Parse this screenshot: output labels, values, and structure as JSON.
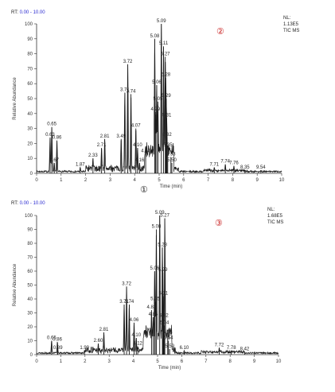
{
  "charts": [
    {
      "rt_label": "RT:",
      "rt_range": "0.00 - 10.00",
      "nl_label": "NL:",
      "nl_value": "1.13E5",
      "nl_mode": "TIC  MS",
      "marker_top": "②",
      "marker_bottom": "①",
      "marker_color": "#c81e1e",
      "marker_bottom_color": "#222222"
    },
    {
      "rt_label": "RT:",
      "rt_range": "0.00 - 10.00",
      "nl_label": "NL:",
      "nl_value": "1.68E5",
      "nl_mode": "TIC  MS",
      "marker_top": "③",
      "marker_color": "#c81e1e"
    }
  ],
  "chart_data": [
    {
      "type": "line",
      "xlabel": "Time (min)",
      "ylabel": "Relative Abundance",
      "xlim": [
        0,
        10
      ],
      "ylim": [
        0,
        100
      ],
      "xticks": [
        0,
        1,
        2,
        3,
        4,
        5,
        6,
        7,
        8,
        9,
        10
      ],
      "yticks": [
        0,
        10,
        20,
        30,
        40,
        50,
        60,
        70,
        80,
        90,
        100
      ],
      "line_color": "#1a1a1a",
      "peaks": [
        {
          "label": "0.63",
          "x": 0.55,
          "y": 24
        },
        {
          "label": "0.65",
          "x": 0.62,
          "y": 31
        },
        {
          "label": "0.86",
          "x": 0.83,
          "y": 22
        },
        {
          "label": "0.67",
          "x": 0.72,
          "y": 7
        },
        {
          "label": "1.87",
          "x": 1.78,
          "y": 4
        },
        {
          "label": "2.33",
          "x": 2.3,
          "y": 10
        },
        {
          "label": "2.71",
          "x": 2.65,
          "y": 17
        },
        {
          "label": "2.81",
          "x": 2.78,
          "y": 23
        },
        {
          "label": "3.49",
          "x": 3.45,
          "y": 23
        },
        {
          "label": "3.72",
          "x": 3.72,
          "y": 73
        },
        {
          "label": "3.71",
          "x": 3.6,
          "y": 54
        },
        {
          "label": "3.74",
          "x": 3.85,
          "y": 53
        },
        {
          "label": "4.07",
          "x": 4.05,
          "y": 30
        },
        {
          "label": "4.10",
          "x": 4.12,
          "y": 17
        },
        {
          "label": "4.87",
          "x": 4.45,
          "y": 13
        },
        {
          "label": "4.16",
          "x": 4.2,
          "y": 7
        },
        {
          "label": "5.08",
          "x": 4.82,
          "y": 90
        },
        {
          "label": "5.09",
          "x": 5.09,
          "y": 100
        },
        {
          "label": "5.06",
          "x": 4.9,
          "y": 59
        },
        {
          "label": "5.05",
          "x": 4.95,
          "y": 48
        },
        {
          "label": "4.99",
          "x": 4.85,
          "y": 41
        },
        {
          "label": "5.11",
          "x": 5.18,
          "y": 85
        },
        {
          "label": "5.27",
          "x": 5.25,
          "y": 78
        },
        {
          "label": "5.28",
          "x": 5.27,
          "y": 64
        },
        {
          "label": "5.29",
          "x": 5.29,
          "y": 50
        },
        {
          "label": "5.31",
          "x": 5.31,
          "y": 37
        },
        {
          "label": "5.32",
          "x": 5.32,
          "y": 24
        },
        {
          "label": "5.35",
          "x": 5.35,
          "y": 17
        },
        {
          "label": "5.53",
          "x": 5.48,
          "y": 11
        },
        {
          "label": "5.50",
          "x": 5.52,
          "y": 7
        },
        {
          "label": "7.71",
          "x": 7.25,
          "y": 4
        },
        {
          "label": "7.74",
          "x": 7.7,
          "y": 6
        },
        {
          "label": "7.76",
          "x": 8.05,
          "y": 5
        },
        {
          "label": "8.35",
          "x": 8.5,
          "y": 2
        },
        {
          "label": "9.54",
          "x": 9.15,
          "y": 2
        }
      ]
    },
    {
      "type": "line",
      "xlabel": "Time (min)",
      "ylabel": "Relative Abundance",
      "xlim": [
        0,
        10
      ],
      "ylim": [
        0,
        100
      ],
      "xticks": [
        0,
        1,
        2,
        3,
        4,
        5,
        6,
        7,
        8,
        9,
        10
      ],
      "yticks": [
        0,
        10,
        20,
        30,
        40,
        50,
        60,
        70,
        80,
        90,
        100
      ],
      "line_color": "#1a1a1a",
      "peaks": [
        {
          "label": "0.65",
          "x": 0.62,
          "y": 10
        },
        {
          "label": "0.86",
          "x": 0.86,
          "y": 9
        },
        {
          "label": "0.89",
          "x": 0.88,
          "y": 3
        },
        {
          "label": "1.99",
          "x": 1.98,
          "y": 3
        },
        {
          "label": "2.60",
          "x": 2.55,
          "y": 8
        },
        {
          "label": "2.81",
          "x": 2.78,
          "y": 16
        },
        {
          "label": "3.72",
          "x": 3.72,
          "y": 49
        },
        {
          "label": "3.71",
          "x": 3.62,
          "y": 36
        },
        {
          "label": "3.74",
          "x": 3.83,
          "y": 36
        },
        {
          "label": "4.06",
          "x": 4.03,
          "y": 23
        },
        {
          "label": "4.10",
          "x": 4.12,
          "y": 12
        },
        {
          "label": "4.12",
          "x": 4.18,
          "y": 6
        },
        {
          "label": "4.85",
          "x": 4.82,
          "y": 27
        },
        {
          "label": "5.09",
          "x": 5.09,
          "y": 100
        },
        {
          "label": "5.08",
          "x": 4.95,
          "y": 90
        },
        {
          "label": "5.27",
          "x": 5.3,
          "y": 98
        },
        {
          "label": "5.06",
          "x": 4.88,
          "y": 60
        },
        {
          "label": "5.05",
          "x": 4.9,
          "y": 38
        },
        {
          "label": "4.83",
          "x": 4.75,
          "y": 32
        },
        {
          "label": "5.28",
          "x": 5.2,
          "y": 77
        },
        {
          "label": "5.29",
          "x": 5.22,
          "y": 59
        },
        {
          "label": "5.31",
          "x": 5.24,
          "y": 42
        },
        {
          "label": "5.32",
          "x": 5.26,
          "y": 26
        },
        {
          "label": "5.34",
          "x": 5.28,
          "y": 21
        },
        {
          "label": "5.53",
          "x": 5.42,
          "y": 14
        },
        {
          "label": "5.54",
          "x": 5.45,
          "y": 10
        },
        {
          "label": "5.59",
          "x": 5.5,
          "y": 4
        },
        {
          "label": "6.10",
          "x": 6.1,
          "y": 3
        },
        {
          "label": "7.72",
          "x": 7.55,
          "y": 5
        },
        {
          "label": "7.78",
          "x": 8.05,
          "y": 3
        },
        {
          "label": "8.42",
          "x": 8.6,
          "y": 2
        }
      ]
    }
  ]
}
